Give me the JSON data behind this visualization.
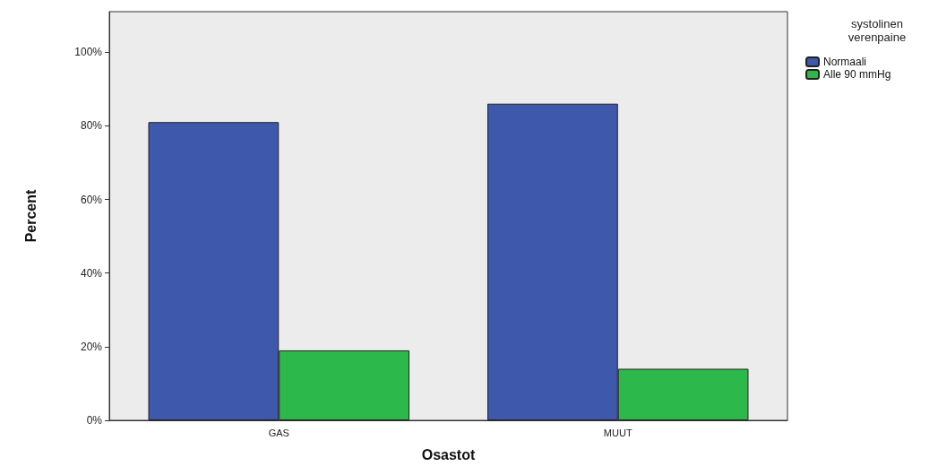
{
  "chart_data": {
    "type": "bar",
    "xlabel": "Osastot",
    "ylabel": "Percent",
    "legend_title": "systolinen verenpaine",
    "categories": [
      "GAS",
      "MUUT"
    ],
    "series": [
      {
        "name": "Normaali",
        "color": "#3e58ac",
        "values": [
          81,
          86
        ]
      },
      {
        "name": "Alle 90 mmHg",
        "color": "#2db84b",
        "values": [
          19,
          14
        ]
      }
    ],
    "ylim": [
      0,
      111
    ],
    "yticks": [
      {
        "value": 0,
        "label": "0%"
      },
      {
        "value": 20,
        "label": "20%"
      },
      {
        "value": 40,
        "label": "40%"
      },
      {
        "value": 60,
        "label": "60%"
      },
      {
        "value": 80,
        "label": "80%"
      },
      {
        "value": 100,
        "label": "100%"
      }
    ],
    "grid": false,
    "legend": "top right"
  }
}
